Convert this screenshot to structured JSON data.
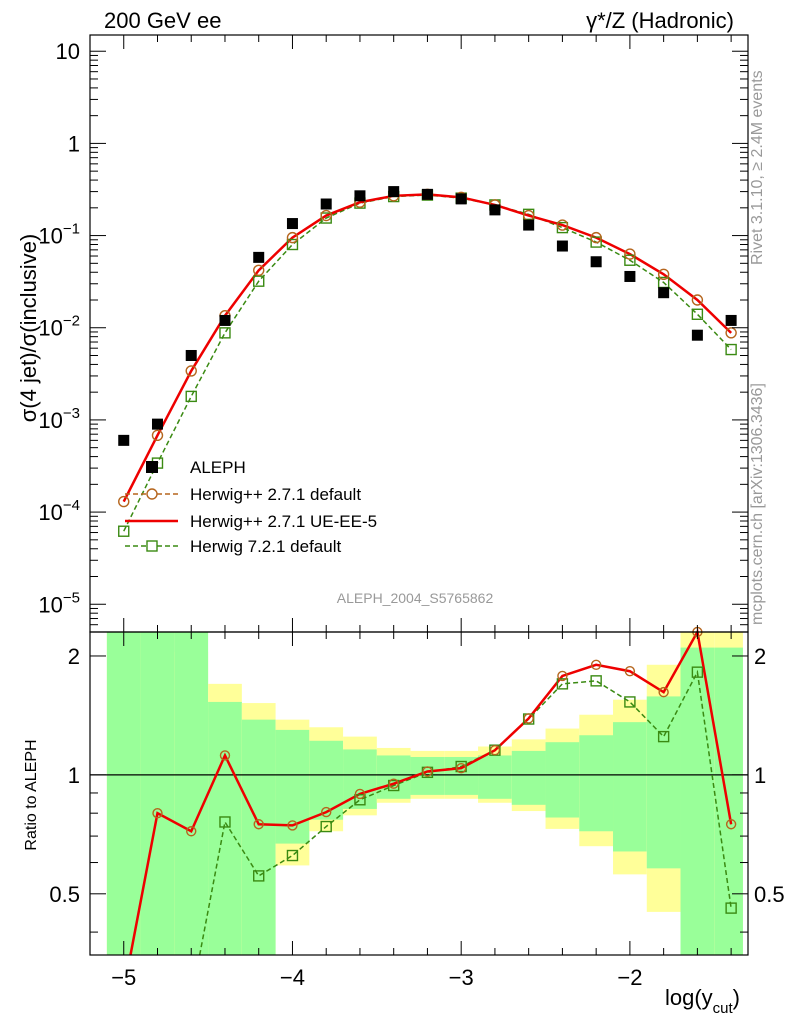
{
  "header": {
    "left_title": "200 GeV ee",
    "right_title": "γ*/Z (Hadronic)",
    "watermark_analysis": "ALEPH_2004_S5765862",
    "side_rivet": "Rivet 3.1.10, ≥ 2.4M events",
    "side_mcplots": "mcplots.cern.ch [arXiv:1306.3436]"
  },
  "axes": {
    "main_ylabel": "σ(4 jet)/σ(inclusive)",
    "ratio_ylabel": "Ratio to ALEPH",
    "xlabel_main": "log(y",
    "xlabel_sub": "cut",
    "xlabel_close": ")",
    "x_ticks": [
      "−5",
      "−4",
      "−3",
      "−2"
    ],
    "main_y_ticks": [
      {
        "base": "10",
        "exp": "−5",
        "value": 1e-05
      },
      {
        "base": "10",
        "exp": "−4",
        "value": 0.0001
      },
      {
        "base": "10",
        "exp": "−3",
        "value": 0.001
      },
      {
        "base": "10",
        "exp": "−2",
        "value": 0.01
      },
      {
        "base": "10",
        "exp": "−1",
        "value": 0.1
      },
      {
        "base": "1",
        "exp": "",
        "value": 1
      },
      {
        "base": "10",
        "exp": "",
        "value": 10
      }
    ],
    "ratio_y_ticks": [
      "0.5",
      "1",
      "2"
    ]
  },
  "legend": {
    "aleph": "ALEPH",
    "h271": "Herwig++ 2.7.1 default",
    "ueee5": "Herwig++ 2.7.1 UE-EE-5",
    "h721": "Herwig 7.2.1 default"
  },
  "colors": {
    "data": "#000000",
    "h271": "#b5651d",
    "ueee5": "#ee0000",
    "h721": "#3a8a12",
    "band_inner": "#99ff99",
    "band_outer": "#ffff99"
  },
  "chart_data": [
    {
      "type": "scatter",
      "xlabel": "log(y_cut)",
      "ylabel": "σ(4 jet)/σ(inclusive)",
      "xlim": [
        -5.2,
        -1.3
      ],
      "ylim": [
        5e-06,
        15
      ],
      "yscale": "log",
      "legend_position": "bottom-left",
      "series": [
        {
          "name": "ALEPH",
          "x": [
            -5.0,
            -4.8,
            -4.6,
            -4.4,
            -4.2,
            -4.0,
            -3.8,
            -3.6,
            -3.4,
            -3.2,
            -3.0,
            -2.8,
            -2.6,
            -2.4,
            -2.2,
            -2.0,
            -1.8,
            -1.6,
            -1.4
          ],
          "y": [
            0.0006,
            0.0009,
            0.005,
            0.012,
            0.058,
            0.135,
            0.22,
            0.27,
            0.3,
            0.28,
            0.25,
            0.19,
            0.13,
            0.077,
            0.052,
            0.036,
            0.024,
            0.0083,
            0.012
          ]
        },
        {
          "name": "Herwig++ 2.7.1 default",
          "x": [
            -5.0,
            -4.8,
            -4.6,
            -4.4,
            -4.2,
            -4.0,
            -3.8,
            -3.6,
            -3.4,
            -3.2,
            -3.0,
            -2.8,
            -2.6,
            -2.4,
            -2.2,
            -2.0,
            -1.8,
            -1.6,
            -1.4
          ],
          "y": [
            0.00013,
            0.00068,
            0.0034,
            0.0135,
            0.042,
            0.095,
            0.165,
            0.23,
            0.27,
            0.28,
            0.26,
            0.215,
            0.165,
            0.13,
            0.095,
            0.063,
            0.038,
            0.02,
            0.0088
          ]
        },
        {
          "name": "Herwig++ 2.7.1 UE-EE-5",
          "x": [
            -5.0,
            -4.8,
            -4.6,
            -4.4,
            -4.2,
            -4.0,
            -3.8,
            -3.6,
            -3.4,
            -3.2,
            -3.0,
            -2.8,
            -2.6,
            -2.4,
            -2.2,
            -2.0,
            -1.8,
            -1.6,
            -1.4
          ],
          "y": [
            0.00013,
            0.00068,
            0.0034,
            0.0135,
            0.042,
            0.095,
            0.165,
            0.23,
            0.27,
            0.28,
            0.26,
            0.215,
            0.165,
            0.13,
            0.095,
            0.063,
            0.038,
            0.02,
            0.0088
          ]
        },
        {
          "name": "Herwig 7.2.1 default",
          "x": [
            -5.0,
            -4.8,
            -4.6,
            -4.4,
            -4.2,
            -4.0,
            -3.8,
            -3.6,
            -3.4,
            -3.2,
            -3.0,
            -2.8,
            -2.6,
            -2.4,
            -2.2,
            -2.0,
            -1.8,
            -1.6,
            -1.4
          ],
          "y": [
            6.2e-05,
            0.00034,
            0.0018,
            0.0088,
            0.032,
            0.08,
            0.155,
            0.225,
            0.265,
            0.275,
            0.255,
            0.215,
            0.17,
            0.122,
            0.085,
            0.054,
            0.031,
            0.014,
            0.0058
          ]
        }
      ]
    },
    {
      "type": "line",
      "ylabel": "Ratio to ALEPH",
      "xlim": [
        -5.2,
        -1.3
      ],
      "ylim": [
        0.35,
        2.3
      ],
      "yscale": "log",
      "bands": {
        "edges": [
          -5.1,
          -4.9,
          -4.7,
          -4.5,
          -4.3,
          -4.1,
          -3.9,
          -3.7,
          -3.5,
          -3.3,
          -3.1,
          -2.9,
          -2.7,
          -2.5,
          -2.3,
          -2.1,
          -1.9,
          -1.7,
          -1.5,
          -1.33
        ],
        "inner_hi": [
          2.3,
          2.3,
          2.3,
          1.53,
          1.38,
          1.3,
          1.22,
          1.16,
          1.12,
          1.11,
          1.11,
          1.12,
          1.15,
          1.21,
          1.26,
          1.36,
          1.58,
          2.1,
          2.1
        ],
        "inner_lo": [
          0.35,
          0.35,
          0.35,
          0.35,
          0.35,
          0.67,
          0.77,
          0.82,
          0.87,
          0.89,
          0.89,
          0.87,
          0.84,
          0.78,
          0.72,
          0.64,
          0.58,
          0.35,
          0.35
        ],
        "outer_hi": [
          2.3,
          2.3,
          2.05,
          1.7,
          1.52,
          1.38,
          1.32,
          1.25,
          1.17,
          1.15,
          1.15,
          1.18,
          1.23,
          1.31,
          1.42,
          1.55,
          1.9,
          2.3,
          2.3
        ],
        "outer_lo": [
          0.35,
          0.35,
          0.35,
          0.35,
          0.35,
          0.59,
          0.72,
          0.79,
          0.85,
          0.87,
          0.87,
          0.85,
          0.81,
          0.73,
          0.66,
          0.56,
          0.45,
          0.35,
          0.35
        ]
      },
      "series": [
        {
          "name": "Herwig++ 2.7.1 default",
          "x": [
            -4.8,
            -4.6,
            -4.4,
            -4.2,
            -4.0,
            -3.8,
            -3.6,
            -3.4,
            -3.2,
            -3.0,
            -2.8,
            -2.6,
            -2.4,
            -2.2,
            -2.0,
            -1.8,
            -1.6,
            -1.4
          ],
          "y": [
            0.8,
            0.72,
            1.12,
            0.75,
            0.745,
            0.805,
            0.895,
            0.95,
            1.02,
            1.04,
            1.155,
            1.39,
            1.78,
            1.9,
            1.83,
            1.62,
            2.3,
            0.75
          ]
        },
        {
          "name": "Herwig++ 2.7.1 UE-EE-5",
          "x": [
            -4.96,
            -4.8,
            -4.6,
            -4.4,
            -4.2,
            -4.0,
            -3.8,
            -3.6,
            -3.4,
            -3.2,
            -3.0,
            -2.8,
            -2.6,
            -2.4,
            -2.2,
            -2.0,
            -1.8,
            -1.6,
            -1.4
          ],
          "y": [
            0.35,
            0.8,
            0.72,
            1.12,
            0.75,
            0.745,
            0.805,
            0.895,
            0.95,
            1.02,
            1.04,
            1.155,
            1.39,
            1.78,
            1.9,
            1.83,
            1.62,
            2.3,
            0.75
          ]
        },
        {
          "name": "Herwig 7.2.1 default",
          "x": [
            -4.55,
            -4.4,
            -4.2,
            -4.0,
            -3.8,
            -3.6,
            -3.4,
            -3.2,
            -3.0,
            -2.8,
            -2.6,
            -2.4,
            -2.2,
            -2.0,
            -1.8,
            -1.6,
            -1.4
          ],
          "y": [
            0.35,
            0.76,
            0.555,
            0.625,
            0.74,
            0.865,
            0.94,
            1.015,
            1.05,
            1.155,
            1.385,
            1.7,
            1.73,
            1.53,
            1.25,
            1.82,
            0.46
          ]
        }
      ],
      "reference_line": 1
    }
  ]
}
